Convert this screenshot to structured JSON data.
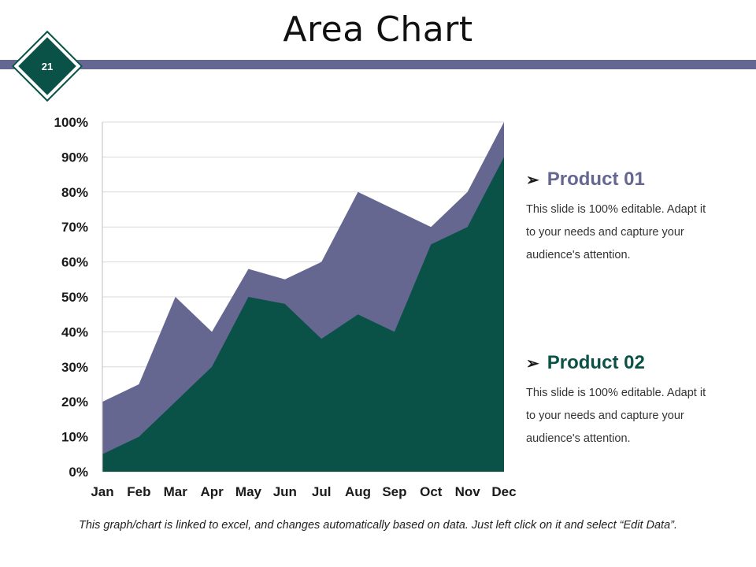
{
  "slide": {
    "title": "Area Chart",
    "page_number": "21",
    "footer": "This graph/chart is linked to excel, and changes automatically based on data. Just left click on it and select “Edit Data”."
  },
  "colors": {
    "product01": "#656791",
    "product02": "#0a5247",
    "header_bar": "#636791",
    "gridline": "#d9d9d9",
    "axis_text": "#1a1a1a"
  },
  "legend": [
    {
      "title": "Product 01",
      "arrow": "➢",
      "description_lines": [
        "This slide is 100% editable. Adapt it",
        "to your needs and capture your",
        "audience's attention."
      ]
    },
    {
      "title": "Product 02",
      "arrow": "➢",
      "description_lines": [
        "This slide is 100% editable. Adapt it",
        "to your needs and capture your",
        "audience's attention."
      ]
    }
  ],
  "chart_data": {
    "type": "area",
    "title": "",
    "xlabel": "",
    "ylabel": "",
    "categories": [
      "Jan",
      "Feb",
      "Mar",
      "Apr",
      "May",
      "Jun",
      "Jul",
      "Aug",
      "Sep",
      "Oct",
      "Nov",
      "Dec"
    ],
    "series": [
      {
        "name": "Product 01",
        "values": [
          20,
          25,
          50,
          40,
          58,
          55,
          60,
          80,
          75,
          70,
          80,
          100
        ]
      },
      {
        "name": "Product 02",
        "values": [
          5,
          10,
          20,
          30,
          50,
          48,
          38,
          45,
          40,
          65,
          70,
          90
        ]
      }
    ],
    "ylim": [
      0,
      100
    ],
    "y_ticks": [
      0,
      10,
      20,
      30,
      40,
      50,
      60,
      70,
      80,
      90,
      100
    ],
    "y_tick_labels": [
      "0%",
      "10%",
      "20%",
      "30%",
      "40%",
      "50%",
      "60%",
      "70%",
      "80%",
      "90%",
      "100%"
    ],
    "grid": true,
    "legend_position": "right"
  }
}
